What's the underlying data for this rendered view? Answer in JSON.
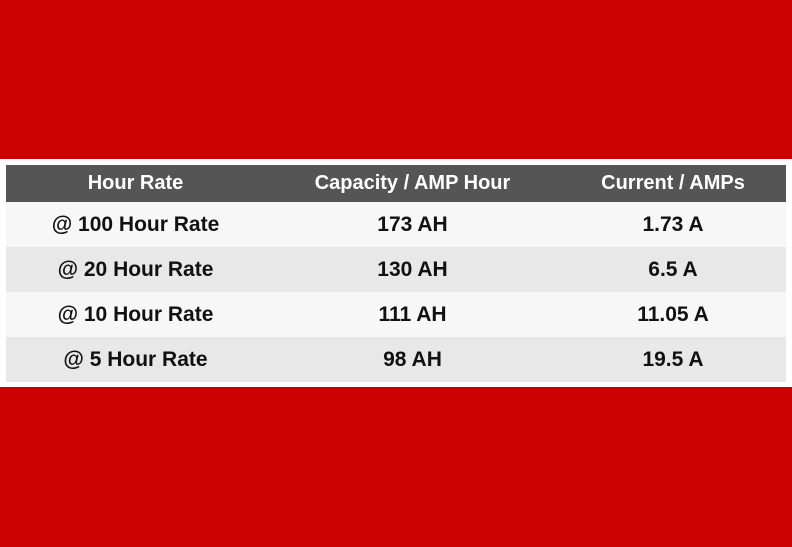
{
  "colors": {
    "background": "#cc0000",
    "header_bg": "#555555",
    "header_text": "#ffffff",
    "row_light": "#f7f7f7",
    "row_dark": "#e8e8e8"
  },
  "table": {
    "headers": [
      "Hour Rate",
      "Capacity / AMP Hour",
      "Current / AMPs"
    ],
    "rows": [
      [
        "@ 100 Hour Rate",
        "173 AH",
        "1.73 A"
      ],
      [
        "@ 20 Hour Rate",
        "130 AH",
        "6.5 A"
      ],
      [
        "@ 10 Hour Rate",
        "111 AH",
        "11.05 A"
      ],
      [
        "@ 5 Hour Rate",
        "98 AH",
        "19.5 A"
      ]
    ]
  }
}
